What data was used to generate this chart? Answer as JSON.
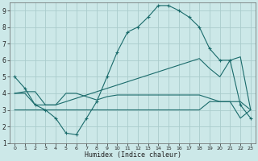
{
  "xlabel": "Humidex (Indice chaleur)",
  "xlim": [
    -0.5,
    23.5
  ],
  "ylim": [
    1,
    9.5
  ],
  "xticks": [
    0,
    1,
    2,
    3,
    4,
    5,
    6,
    7,
    8,
    9,
    10,
    11,
    12,
    13,
    14,
    15,
    16,
    17,
    18,
    19,
    20,
    21,
    22,
    23
  ],
  "yticks": [
    1,
    2,
    3,
    4,
    5,
    6,
    7,
    8,
    9
  ],
  "bg_color": "#cce8e8",
  "grid_color": "#aacccc",
  "line_color": "#1a6b6b",
  "line1_x": [
    0,
    1,
    2,
    3,
    4,
    5,
    6,
    7,
    8,
    9,
    10,
    11,
    12,
    13,
    14,
    15,
    16,
    17,
    18,
    19,
    20,
    21,
    22,
    23
  ],
  "line1_y": [
    5.0,
    4.3,
    3.3,
    3.0,
    2.5,
    1.6,
    1.5,
    2.5,
    3.5,
    5.0,
    6.5,
    7.7,
    8.0,
    8.6,
    9.3,
    9.3,
    9.0,
    8.6,
    8.0,
    6.7,
    6.0,
    6.0,
    3.3,
    2.5
  ],
  "line2_x": [
    0,
    1,
    2,
    3,
    4,
    5,
    6,
    7,
    8,
    9,
    10,
    11,
    12,
    13,
    14,
    15,
    16,
    17,
    18,
    19,
    20,
    21,
    22,
    23
  ],
  "line2_y": [
    4.0,
    4.1,
    4.1,
    3.3,
    3.3,
    3.5,
    3.7,
    3.9,
    4.1,
    4.3,
    4.5,
    4.7,
    4.9,
    5.1,
    5.3,
    5.5,
    5.7,
    5.9,
    6.1,
    5.5,
    5.0,
    6.0,
    6.2,
    3.0
  ],
  "line3_x": [
    0,
    1,
    2,
    3,
    4,
    5,
    6,
    7,
    8,
    9,
    10,
    11,
    12,
    13,
    14,
    15,
    16,
    17,
    18,
    19,
    20,
    21,
    22,
    23
  ],
  "line3_y": [
    4.0,
    4.0,
    3.3,
    3.3,
    3.3,
    4.0,
    4.0,
    3.8,
    3.6,
    3.8,
    3.9,
    3.9,
    3.9,
    3.9,
    3.9,
    3.9,
    3.9,
    3.9,
    3.9,
    3.7,
    3.5,
    3.5,
    3.5,
    3.0
  ],
  "line4_x": [
    0,
    1,
    2,
    3,
    4,
    5,
    6,
    7,
    8,
    9,
    10,
    11,
    12,
    13,
    14,
    15,
    16,
    17,
    18,
    19,
    20,
    21,
    22,
    23
  ],
  "line4_y": [
    3.0,
    3.0,
    3.0,
    3.0,
    3.0,
    3.0,
    3.0,
    3.0,
    3.0,
    3.0,
    3.0,
    3.0,
    3.0,
    3.0,
    3.0,
    3.0,
    3.0,
    3.0,
    3.0,
    3.5,
    3.5,
    3.5,
    2.5,
    3.0
  ],
  "marker_x": [
    0,
    1,
    2,
    3,
    4,
    5,
    6,
    7,
    8,
    9,
    10,
    11,
    12,
    13,
    14,
    15,
    16,
    17,
    18,
    19,
    20,
    21,
    22,
    23
  ],
  "marker_y": [
    5.0,
    4.3,
    3.3,
    3.0,
    2.5,
    1.6,
    1.5,
    2.5,
    3.5,
    5.0,
    6.5,
    7.7,
    8.0,
    8.6,
    9.3,
    9.3,
    9.0,
    8.6,
    8.0,
    6.7,
    6.0,
    6.0,
    3.3,
    2.5
  ]
}
